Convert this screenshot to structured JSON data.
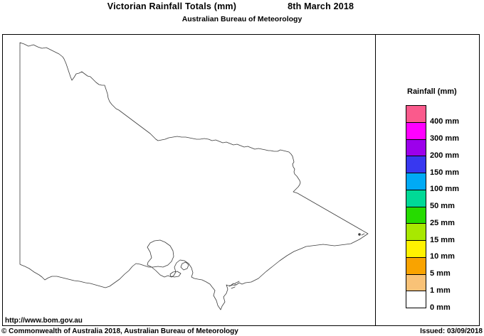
{
  "header": {
    "title": "Victorian Rainfall Totals (mm)",
    "date": "8th March 2018",
    "subtitle": "Australian Bureau of Meteorology"
  },
  "map": {
    "region_name": "Victoria",
    "url_label": "http://www.bom.gov.au",
    "outline_color": "#3c3c3c"
  },
  "legend": {
    "title": "Rainfall (mm)",
    "entries": [
      {
        "color": "#FA5A8C",
        "label": "400 mm"
      },
      {
        "color": "#FF00FF",
        "label": "300 mm"
      },
      {
        "color": "#9C00EB",
        "label": "200 mm"
      },
      {
        "color": "#3838F0",
        "label": "150 mm"
      },
      {
        "color": "#00AAF5",
        "label": "100 mm"
      },
      {
        "color": "#00D996",
        "label": "50 mm"
      },
      {
        "color": "#26DB00",
        "label": "25 mm"
      },
      {
        "color": "#A8E800",
        "label": "15 mm"
      },
      {
        "color": "#FFF200",
        "label": "10 mm"
      },
      {
        "color": "#F9A300",
        "label": "5 mm"
      },
      {
        "color": "#F9C277",
        "label": "1 mm"
      },
      {
        "color": "#FFFFFF",
        "label": "0 mm"
      }
    ]
  },
  "footer": {
    "copyright": "© Commonwealth of Australia 2018, Australian Bureau of Meteorology",
    "issued": "Issued: 03/09/2018"
  }
}
